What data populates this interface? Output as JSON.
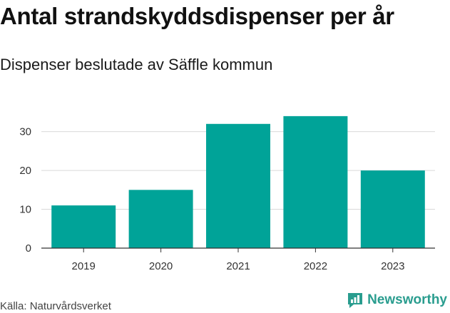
{
  "header": {
    "title": "Antal strandskyddsdispenser per år",
    "subtitle": "Dispenser beslutade av Säffle kommun"
  },
  "footer": {
    "source": "Källa: Naturvårdsverket",
    "brand": "Newsworthy"
  },
  "colors": {
    "bar": "#00a398",
    "grid": "#d9d9d9",
    "axis": "#333333",
    "brand": "#2a9d8f"
  },
  "chart_data": {
    "type": "bar",
    "title": "Antal strandskyddsdispenser per år",
    "subtitle": "Dispenser beslutade av Säffle kommun",
    "categories": [
      "2019",
      "2020",
      "2021",
      "2022",
      "2023"
    ],
    "values": [
      11,
      15,
      32,
      34,
      20
    ],
    "xlabel": "",
    "ylabel": "",
    "ylim": [
      0,
      36
    ],
    "yticks": [
      0,
      10,
      20,
      30
    ],
    "grid": true,
    "legend": "none"
  }
}
